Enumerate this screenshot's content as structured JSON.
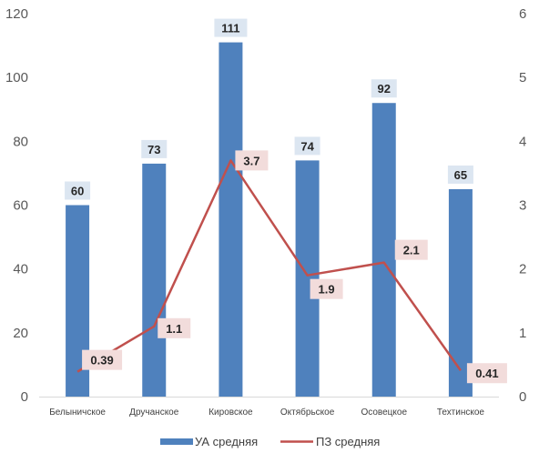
{
  "chart_data": {
    "type": "bar",
    "categories": [
      "Белыничское",
      "Дручанское",
      "Кировское",
      "Октябрьское",
      "Осовецкое",
      "Техтинское"
    ],
    "series": [
      {
        "name": "УА средняя",
        "type": "bar",
        "axis": "left",
        "values": [
          60,
          73,
          111,
          74,
          92,
          65
        ],
        "labels": [
          "60",
          "73",
          "111",
          "74",
          "92",
          "65"
        ]
      },
      {
        "name": "ПЗ средняя",
        "type": "line",
        "axis": "right",
        "values": [
          0.39,
          1.1,
          3.7,
          1.9,
          2.1,
          0.41
        ],
        "labels": [
          "0.39",
          "1.1",
          "3.7",
          "1.9",
          "2.1",
          "0.41"
        ]
      }
    ],
    "ylim_left": [
      0,
      120
    ],
    "ylim_right": [
      0,
      6
    ],
    "yticks_left": [
      "0",
      "20",
      "40",
      "60",
      "80",
      "100",
      "120"
    ],
    "yticks_right": [
      "0",
      "1",
      "2",
      "3",
      "4",
      "5",
      "6"
    ],
    "grid": false,
    "legend_position": "bottom",
    "colors": {
      "bar": "#4f81bd",
      "line": "#c0504d",
      "bar_label_bg": "#dce6f1",
      "line_label_bg": "#f2dcdb"
    }
  }
}
